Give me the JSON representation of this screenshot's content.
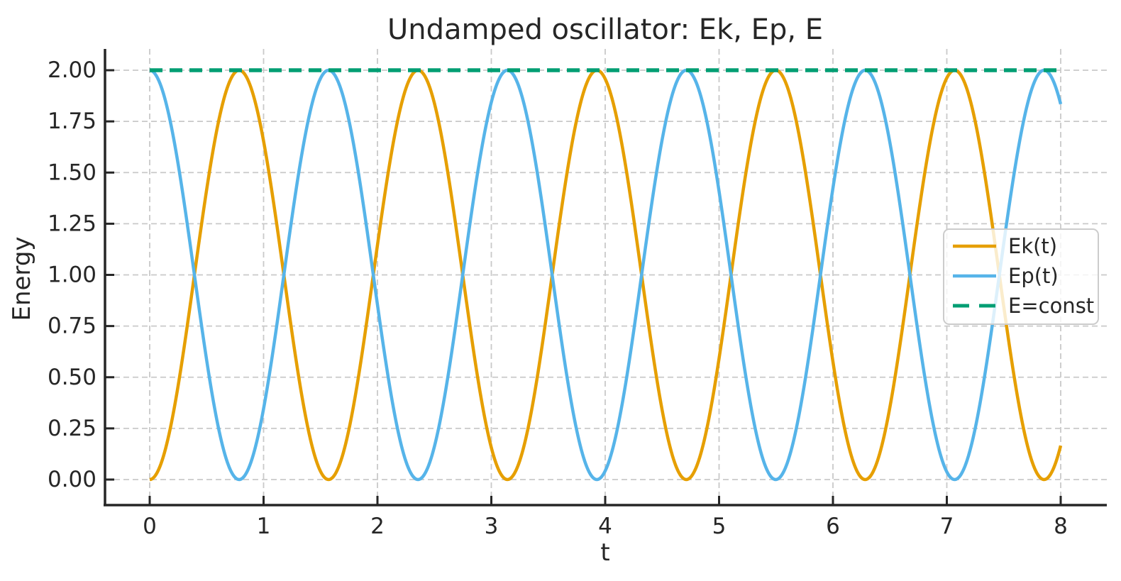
{
  "chart_data": {
    "type": "line",
    "title": "Undamped oscillator: Ek, Ep, E",
    "x_axis": {
      "label": "t",
      "lim": [
        0,
        8
      ],
      "ticks": [
        0,
        1,
        2,
        3,
        4,
        5,
        6,
        7,
        8
      ],
      "tick_labels": [
        "0",
        "1",
        "2",
        "3",
        "4",
        "5",
        "6",
        "7",
        "8"
      ]
    },
    "y_axis": {
      "label": "Energy",
      "lim": [
        0,
        2
      ],
      "ticks": [
        0,
        0.25,
        0.5,
        0.75,
        1,
        1.25,
        1.5,
        1.75,
        2
      ],
      "tick_labels": [
        "0.00",
        "0.25",
        "0.50",
        "0.75",
        "1.00",
        "1.25",
        "1.50",
        "1.75",
        "2.00"
      ]
    },
    "grid": true,
    "series": [
      {
        "name": "Ek(t)",
        "kind": "sin2",
        "formula": "Ek(t) = 2*sin^2(2t)",
        "amplitude": 2,
        "omega": 2,
        "phase": 0,
        "t_range": [
          0,
          8
        ],
        "color": "#E69F00",
        "linestyle": "solid",
        "values_at_integer_t": [
          0,
          1.654,
          1.145,
          0.156,
          1.958,
          0.592,
          0.576,
          1.963,
          0.166
        ]
      },
      {
        "name": "Ep(t)",
        "kind": "cos2",
        "formula": "Ep(t) = 2*cos^2(2t)",
        "amplitude": 2,
        "omega": 2,
        "phase": 0,
        "t_range": [
          0,
          8
        ],
        "color": "#56B4E9",
        "linestyle": "solid",
        "values_at_integer_t": [
          2,
          0.346,
          0.855,
          1.844,
          0.042,
          1.408,
          1.424,
          0.037,
          1.834
        ]
      },
      {
        "name": "E=const",
        "kind": "const",
        "formula": "E = 2",
        "value": 2,
        "t_range": [
          0,
          8
        ],
        "color": "#009E73",
        "linestyle": "dashed",
        "values_at_integer_t": [
          2,
          2,
          2,
          2,
          2,
          2,
          2,
          2,
          2
        ]
      }
    ],
    "legend": {
      "location": "center right",
      "entries": [
        "Ek(t)",
        "Ep(t)",
        "E=const"
      ]
    },
    "colors": {
      "grid": "#c9c9c9",
      "spine": "#262626",
      "text": "#262626",
      "background": "#ffffff"
    }
  }
}
